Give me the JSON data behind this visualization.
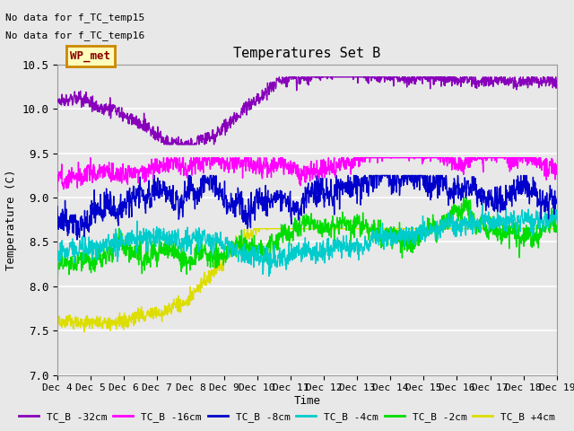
{
  "title": "Temperatures Set B",
  "ylabel": "Temperature (C)",
  "xlabel": "Time",
  "annotations": [
    "No data for f_TC_temp15",
    "No data for f_TC_temp16"
  ],
  "wp_met_label": "WP_met",
  "x_tick_labels": [
    "Dec 4",
    "Dec 5",
    "Dec 6",
    "Dec 7",
    "Dec 8",
    "Dec 9",
    "Dec 10",
    "Dec 11",
    "Dec 12",
    "Dec 13",
    "Dec 14",
    "Dec 15",
    "Dec 16",
    "Dec 17",
    "Dec 18",
    "Dec 19"
  ],
  "ylim": [
    7.0,
    10.5
  ],
  "yticks": [
    7.0,
    7.5,
    8.0,
    8.5,
    9.0,
    9.5,
    10.0,
    10.5
  ],
  "series_colors": {
    "TC_B -32cm": "#8800bb",
    "TC_B -16cm": "#ff00ff",
    "TC_B -8cm": "#0000cc",
    "TC_B -4cm": "#00cccc",
    "TC_B -2cm": "#00dd00",
    "TC_B +4cm": "#dddd00"
  },
  "background_color": "#e8e8e8",
  "plot_bg_color": "#e8e8e8",
  "grid_color": "#ffffff",
  "wp_bg_color": "#ffffbb",
  "wp_border_color": "#cc8800",
  "wp_text_color": "#880000",
  "n_points": 1500,
  "seed": 77
}
